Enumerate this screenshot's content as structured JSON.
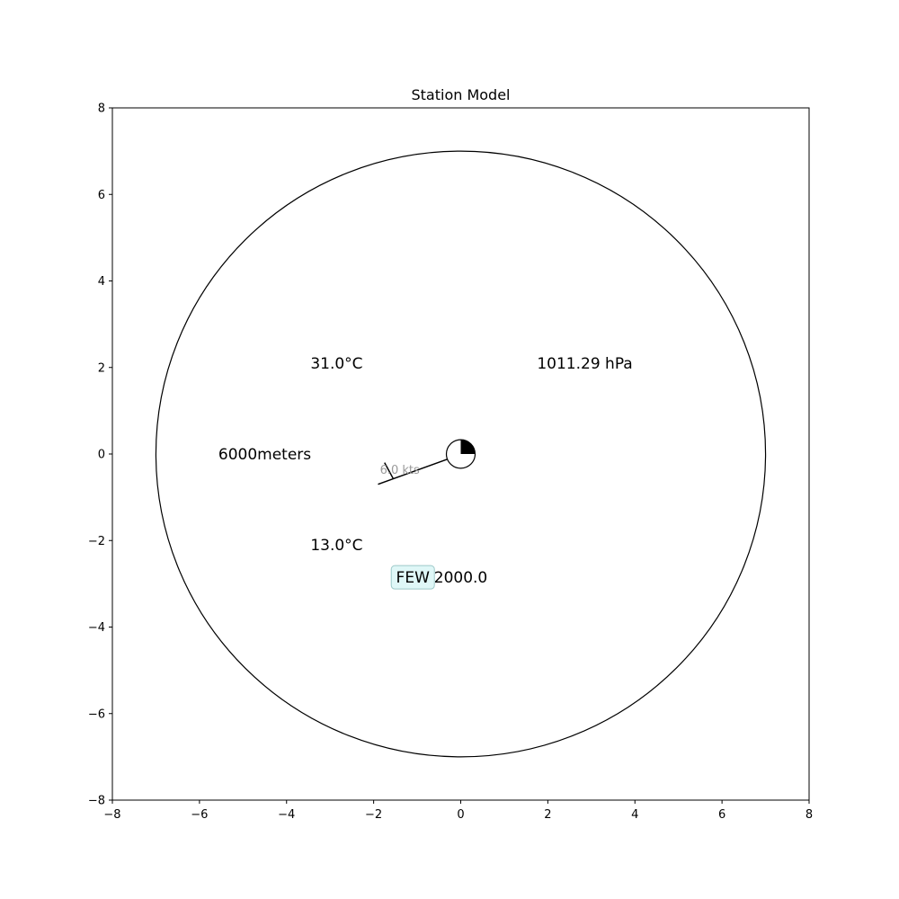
{
  "chart_data": {
    "type": "station-model",
    "title": "Station Model",
    "xlim": [
      -8,
      8
    ],
    "ylim": [
      -8,
      8
    ],
    "xticks": [
      -8,
      -6,
      -4,
      -2,
      0,
      2,
      4,
      6,
      8
    ],
    "yticks": [
      -8,
      -6,
      -4,
      -2,
      0,
      2,
      4,
      6,
      8
    ],
    "grid": false,
    "outer_circle": {
      "center": [
        0,
        0
      ],
      "radius": 7
    },
    "station": {
      "center": [
        0,
        0
      ],
      "radius": 0.33,
      "cloud_cover_fraction": 0.25
    },
    "wind": {
      "label": "6.0 kts",
      "speed_kts": 6.0,
      "shaft_from": [
        -0.25,
        -0.1
      ],
      "shaft_to": [
        -1.9,
        -0.7
      ],
      "barb_at": [
        -1.55,
        -0.57
      ],
      "barb_to": [
        -1.75,
        -0.2
      ],
      "label_at": [
        -1.4,
        -0.35
      ]
    },
    "annotations": [
      {
        "id": "temperature",
        "text": "31.0°C",
        "x": -2.85,
        "y": 2.1
      },
      {
        "id": "pressure",
        "text": "1011.29 hPa",
        "x": 2.85,
        "y": 2.1
      },
      {
        "id": "visibility",
        "text": "6000meters",
        "x": -4.5,
        "y": 0.0
      },
      {
        "id": "dewpoint",
        "text": "13.0°C",
        "x": -2.85,
        "y": -2.1
      },
      {
        "id": "cloud-height",
        "text": "2000.0",
        "x": 0.0,
        "y": -2.85
      }
    ],
    "cloud_label": {
      "text": "FEW",
      "x": -1.1,
      "y": -2.85
    }
  },
  "colors": {
    "axes": "#000000",
    "cloud_box_fill": "#dff7f7",
    "cloud_box_stroke": "#9cc8c8",
    "wind_label": "#9a9a9a"
  }
}
